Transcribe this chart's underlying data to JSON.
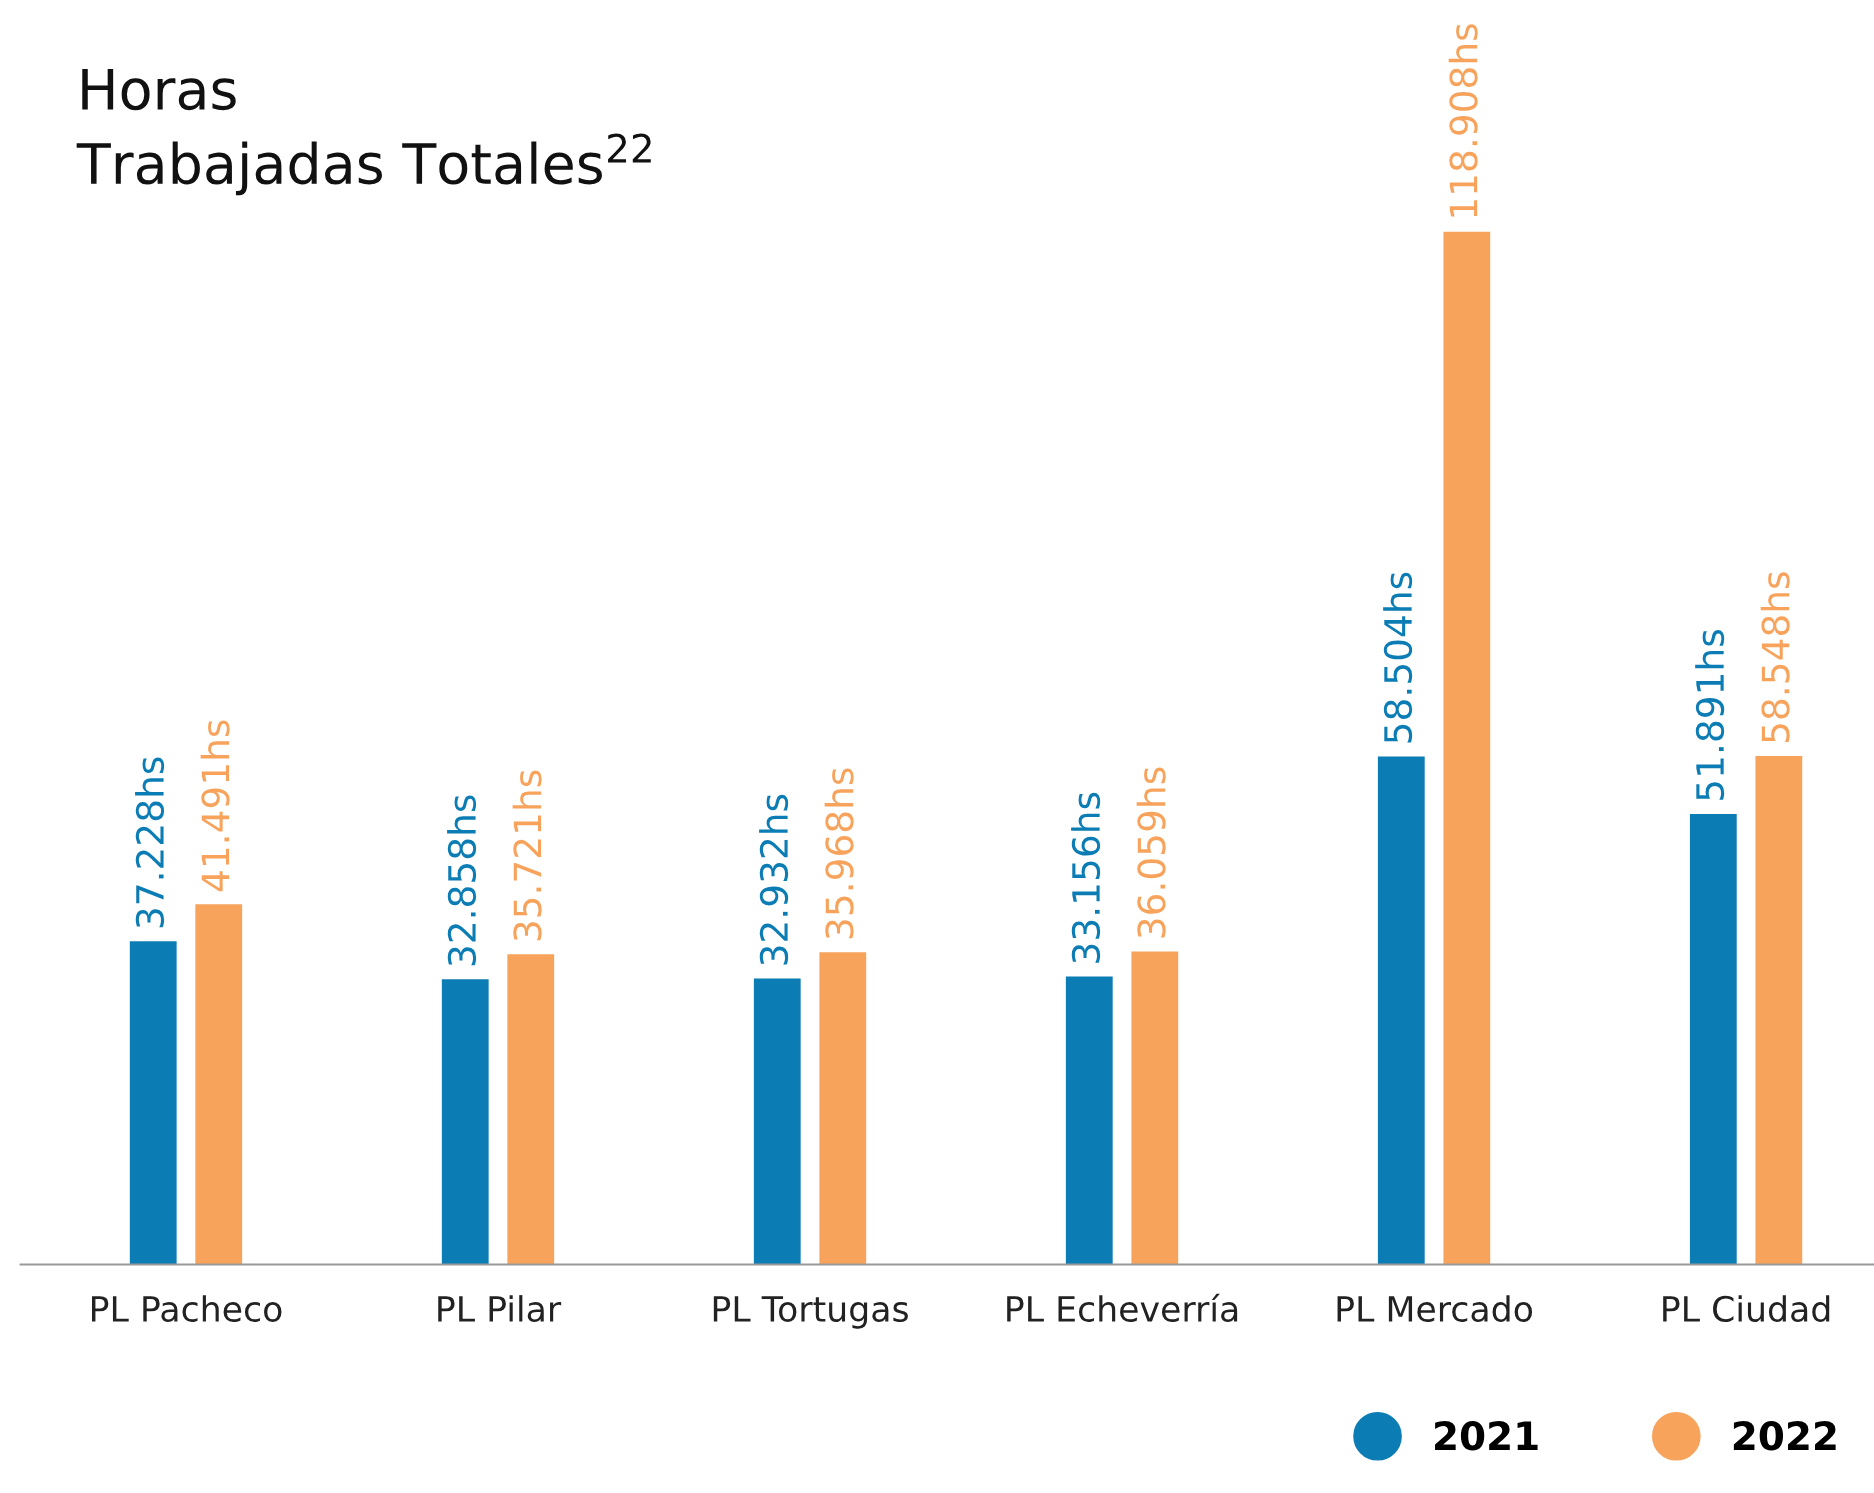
{
  "chart_data": {
    "type": "bar",
    "title": "Horas\nTrabajadas Totales$^{22}$",
    "categories": [
      "PL Pacheco",
      "PL Pilar",
      "PL Tortugas",
      "PL Echeverría",
      "PL Mercado",
      "PL Ciudad"
    ],
    "series": [
      {
        "name": "2021",
        "color": "#0c7db4",
        "values": [
          37228,
          32858,
          32932,
          33156,
          58504,
          51891
        ],
        "value_labels": [
          "37.228hs",
          "32.858hs",
          "32.932hs",
          "33.156hs",
          "58.504hs",
          "51.891hs"
        ]
      },
      {
        "name": "2022",
        "color": "#f7a35c",
        "values": [
          41491,
          35721,
          35968,
          36059,
          118908,
          58548
        ],
        "value_labels": [
          "41.491hs",
          "35.721hs",
          "35.968hs",
          "36.059hs",
          "118.908hs",
          "58.548hs"
        ]
      }
    ],
    "legend": "bottom right",
    "grid": false
  }
}
